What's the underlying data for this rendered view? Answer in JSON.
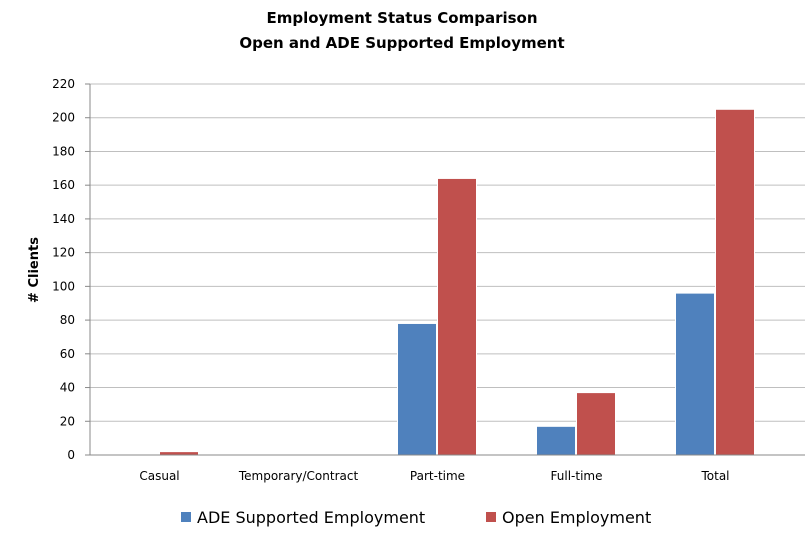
{
  "chart_data": {
    "type": "bar",
    "title_lines": [
      "Employment Status Comparison",
      "Open and ADE Supported Employment"
    ],
    "xlabel": "",
    "ylabel": "# Clients",
    "ylim": [
      0,
      220
    ],
    "yticks": [
      0,
      20,
      40,
      60,
      80,
      100,
      120,
      140,
      160,
      180,
      200,
      220
    ],
    "categories": [
      "Casual",
      "Temporary/Contract",
      "Part-time",
      "Full-time",
      "Total"
    ],
    "series": [
      {
        "name": "ADE Supported Employment",
        "color": "#4f81bd",
        "values": [
          0,
          0,
          78,
          17,
          96
        ]
      },
      {
        "name": "Open Employment",
        "color": "#c0504d",
        "values": [
          2,
          0,
          164,
          37,
          205
        ]
      }
    ],
    "grid": true,
    "legend_position": "bottom"
  }
}
